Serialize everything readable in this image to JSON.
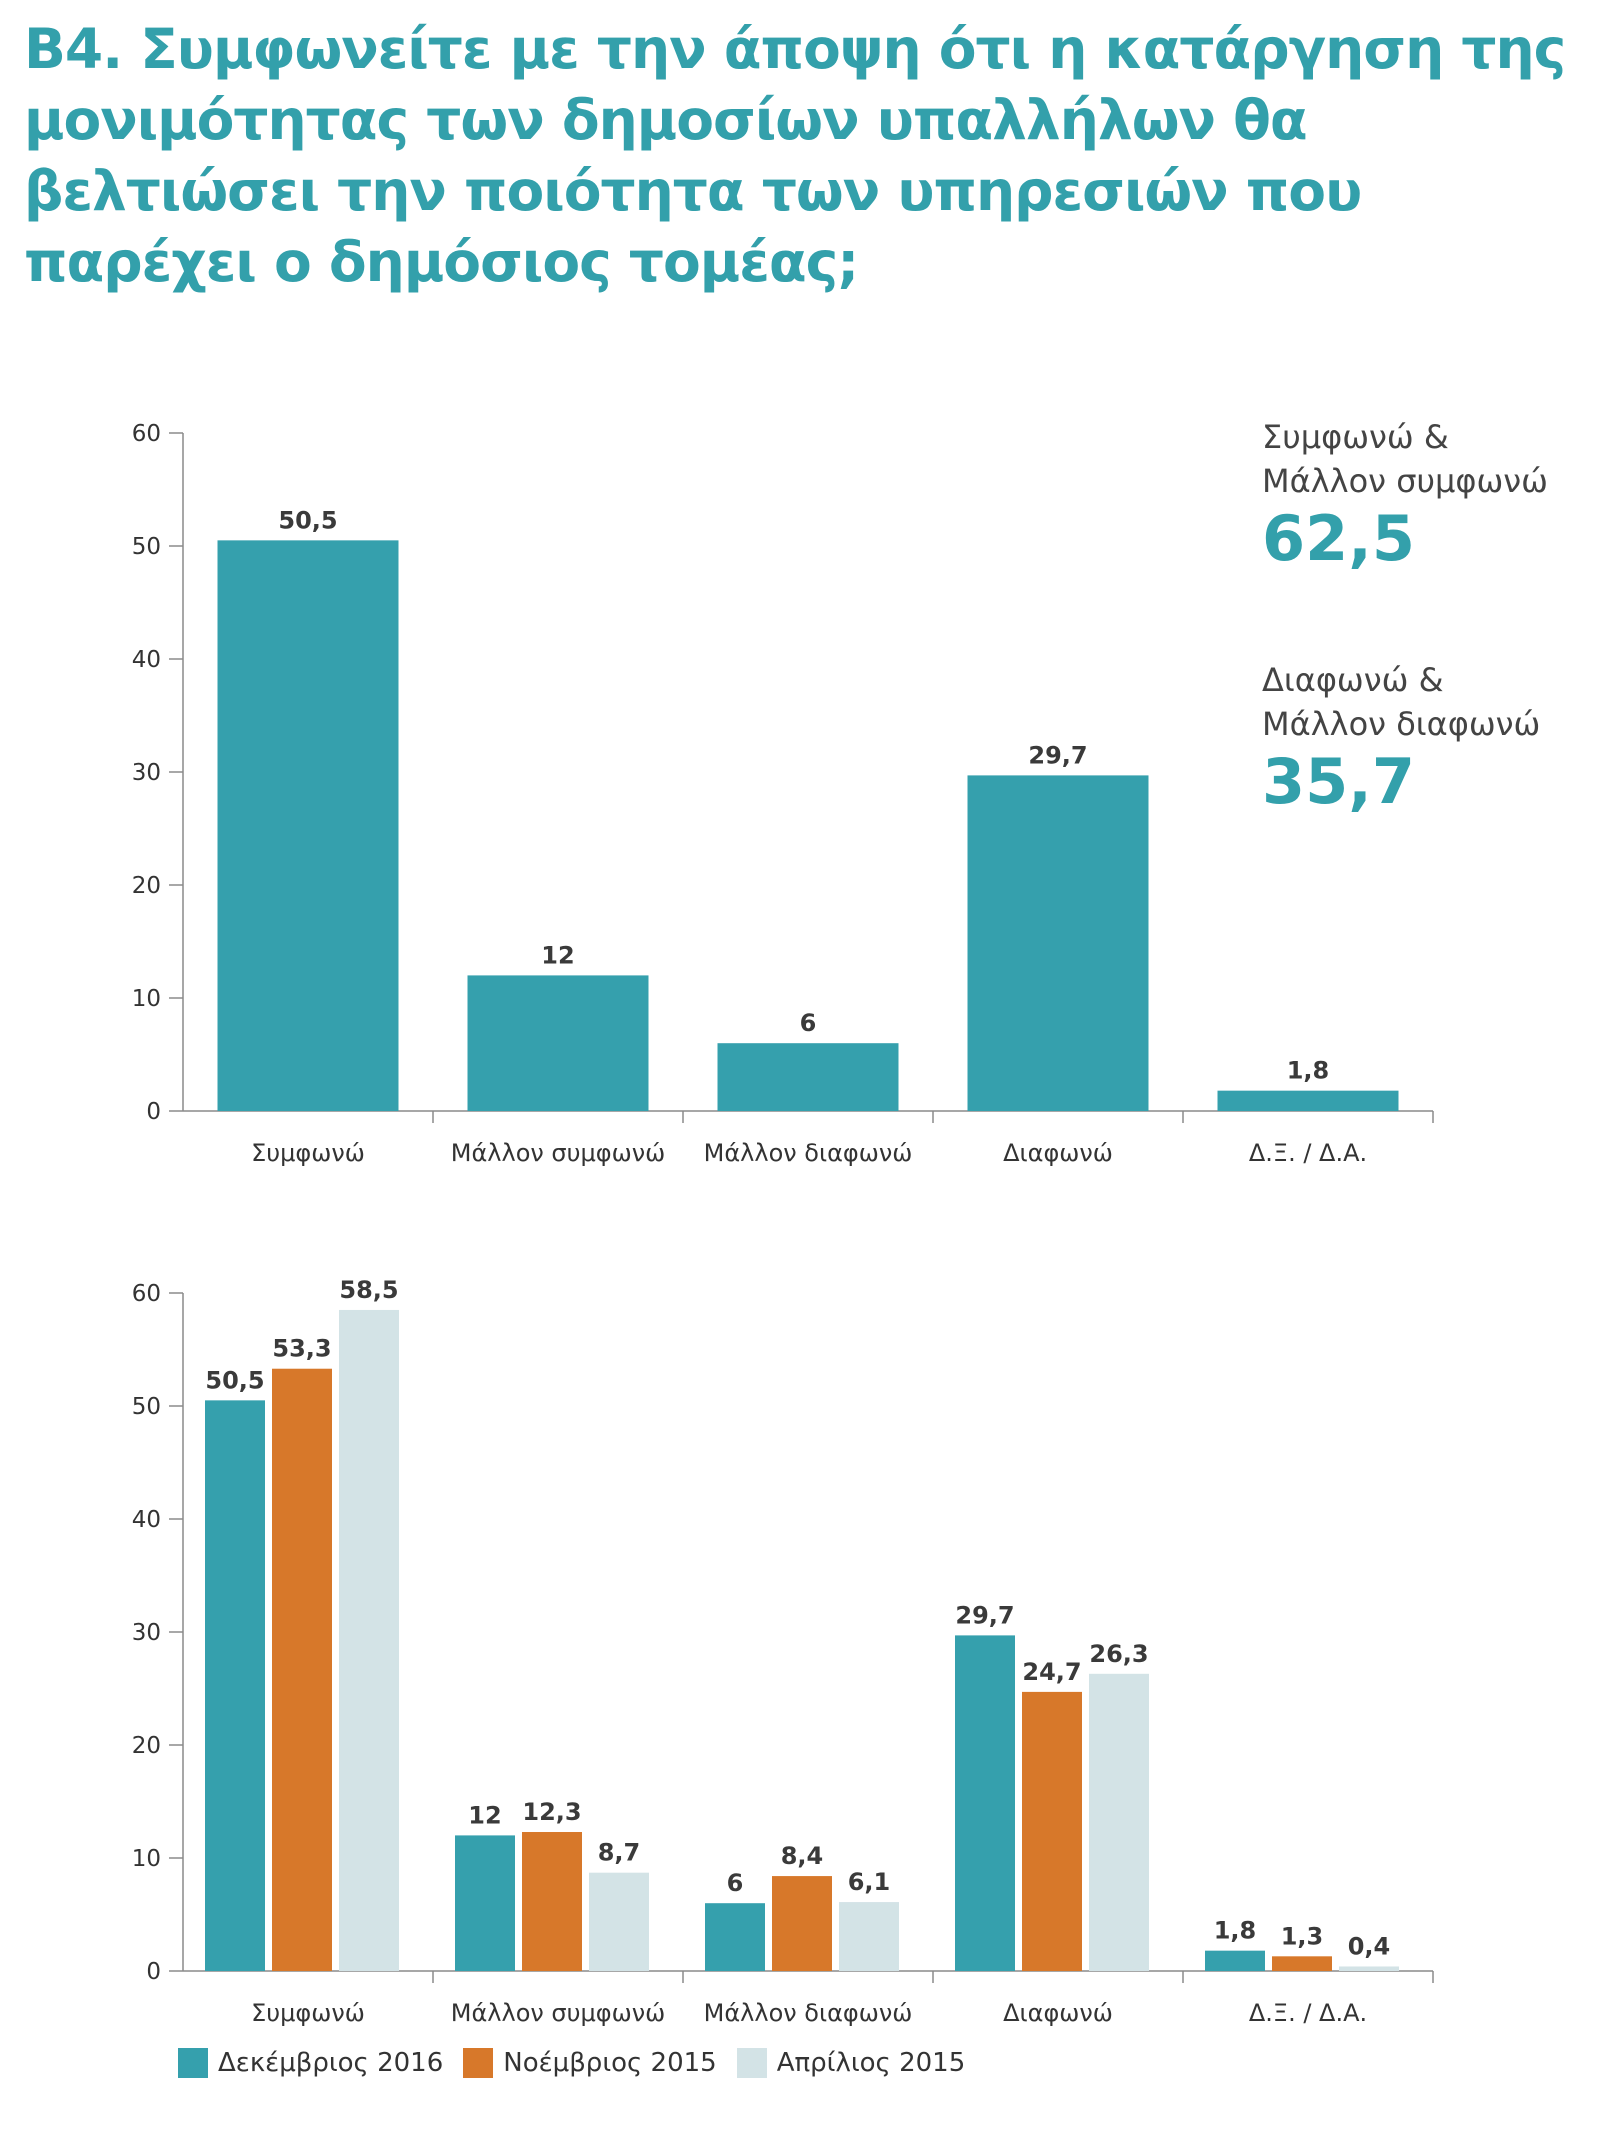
{
  "title": "Β4. Συμφωνείτε με την άποψη ότι η κατάργηση της μονιμότητας των δημοσίων υπαλλήλων θα βελτιώσει την ποιότητα των υπηρεσιών που παρέχει ο δημόσιος τομέας;",
  "colors": {
    "teal": "#35a0ad",
    "orange": "#d7782a",
    "light": "#d3e3e6",
    "axis": "#8a8a8a",
    "title": "#33a0ab"
  },
  "summary": [
    {
      "label_line1": "Συμφωνώ &",
      "label_line2": "Μάλλον συμφωνώ",
      "value": "62,5"
    },
    {
      "label_line1": "Διαφωνώ &",
      "label_line2": "Μάλλον διαφωνώ",
      "value": "35,7"
    }
  ],
  "chart_data": [
    {
      "type": "bar",
      "categories": [
        "Συμφωνώ",
        "Μάλλον συμφωνώ",
        "Μάλλον διαφωνώ",
        "Διαφωνώ",
        "Δ.Ξ. / Δ.Α."
      ],
      "series": [
        {
          "values": [
            50.5,
            12,
            6,
            29.7,
            1.8
          ],
          "labels": [
            "50,5",
            "12",
            "6",
            "29,7",
            "1,8"
          ]
        }
      ],
      "ylim": [
        0,
        60
      ],
      "yticks": [
        0,
        10,
        20,
        30,
        40,
        50,
        60
      ],
      "grid": false
    },
    {
      "type": "bar",
      "categories": [
        "Συμφωνώ",
        "Μάλλον συμφωνώ",
        "Μάλλον διαφωνώ",
        "Διαφωνώ",
        "Δ.Ξ. / Δ.Α."
      ],
      "series": [
        {
          "name": "Δεκέμβριος 2016",
          "values": [
            50.5,
            12,
            6,
            29.7,
            1.8
          ],
          "labels": [
            "50,5",
            "12",
            "6",
            "29,7",
            "1,8"
          ]
        },
        {
          "name": "Νοέμβριος 2015",
          "values": [
            53.3,
            12.3,
            8.4,
            24.7,
            1.3
          ],
          "labels": [
            "53,3",
            "12,3",
            "8,4",
            "24,7",
            "1,3"
          ]
        },
        {
          "name": "Απρίλιος 2015",
          "values": [
            58.5,
            8.7,
            6.1,
            26.3,
            0.4
          ],
          "labels": [
            "58,5",
            "8,7",
            "6,1",
            "26,3",
            "0,4"
          ]
        }
      ],
      "ylim": [
        0,
        60
      ],
      "yticks": [
        0,
        10,
        20,
        30,
        40,
        50,
        60
      ],
      "grid": false,
      "legend": "bottom"
    }
  ]
}
